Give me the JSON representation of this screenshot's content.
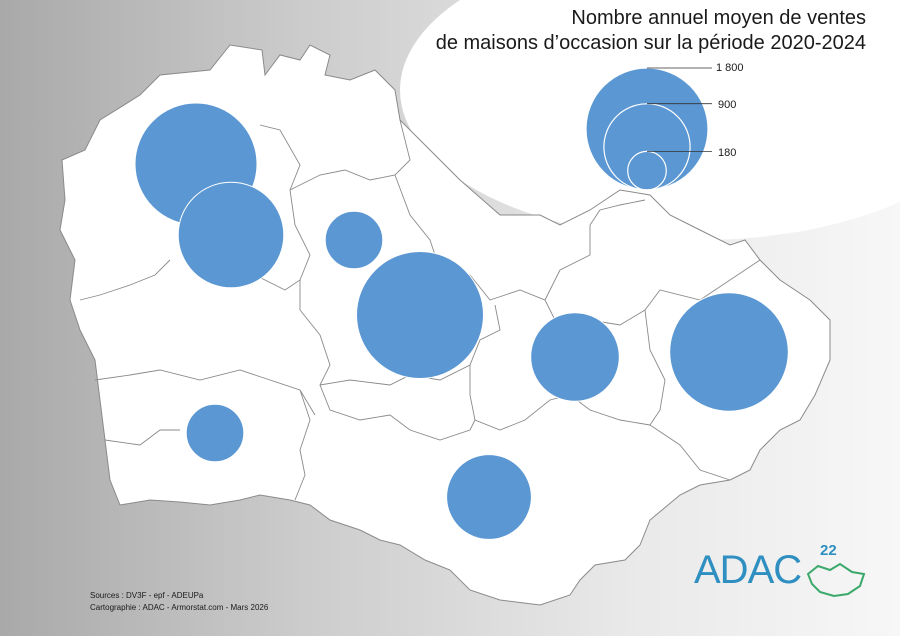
{
  "title": {
    "line1": "Nombre annuel moyen de ventes",
    "line2": "de maisons d’occasion sur la période 2020-2024"
  },
  "legend": {
    "values": [
      {
        "label": "1 800",
        "value": 1800
      },
      {
        "label": "900",
        "value": 900
      },
      {
        "label": "180",
        "value": 180
      }
    ]
  },
  "territories": [
    {
      "name": "northwest-1",
      "value": 1800
    },
    {
      "name": "northwest-2",
      "value": 1350
    },
    {
      "name": "center-north",
      "value": 400
    },
    {
      "name": "center",
      "value": 1950
    },
    {
      "name": "east",
      "value": 950
    },
    {
      "name": "far-east",
      "value": 1700
    },
    {
      "name": "southwest",
      "value": 400
    },
    {
      "name": "south",
      "value": 870
    }
  ],
  "footer": {
    "sources": "Sources : DV3F - epf - ADEUPa",
    "credit": "Cartographie : ADAC - Armorstat.com - Mars 2026"
  },
  "logo": {
    "text": "ADAC",
    "superscript": "22"
  },
  "colors": {
    "circle": "#5b97d2",
    "land": "#ffffff",
    "border": "#7a7a7a",
    "logo": "#2f8fc1"
  }
}
